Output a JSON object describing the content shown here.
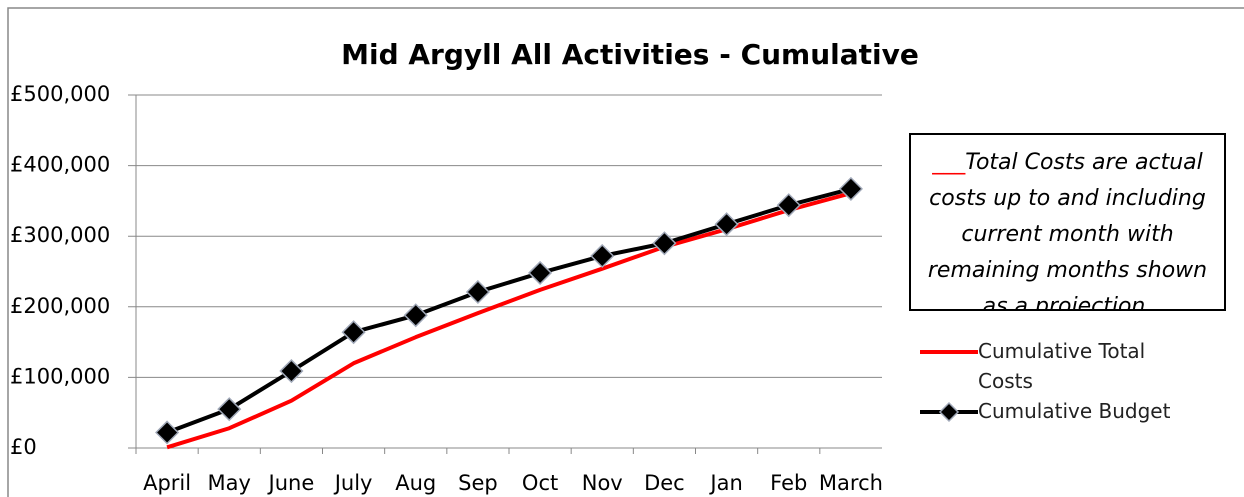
{
  "chart_data": {
    "type": "line",
    "title": "Mid Argyll All Activities - Cumulative",
    "annotation": "Total Costs are actual costs up to and including current month with remaining months shown as a projection.",
    "categories": [
      "April",
      "May",
      "June",
      "July",
      "Aug",
      "Sep",
      "Oct",
      "Nov",
      "Dec",
      "Jan",
      "Feb",
      "March"
    ],
    "series": [
      {
        "name": "Cumulative Total Costs",
        "color": "#ff0000",
        "marker": false,
        "values": [
          1000,
          28000,
          67000,
          120000,
          157000,
          191000,
          224000,
          254000,
          285000,
          310000,
          337000,
          361000
        ]
      },
      {
        "name": "Cumulative Budget",
        "color": "#000000",
        "marker": true,
        "values": [
          22000,
          55000,
          109000,
          164000,
          188000,
          221000,
          248000,
          272000,
          290000,
          317000,
          344000,
          367000
        ]
      }
    ],
    "ylim": [
      0,
      500000
    ],
    "yticks": [
      {
        "value": 0,
        "label": "£0"
      },
      {
        "value": 100000,
        "label": "£100,000"
      },
      {
        "value": 200000,
        "label": "£200,000"
      },
      {
        "value": 300000,
        "label": "£300,000"
      },
      {
        "value": 400000,
        "label": "£400,000"
      },
      {
        "value": 500000,
        "label": "£500,000"
      }
    ],
    "grid": true
  }
}
